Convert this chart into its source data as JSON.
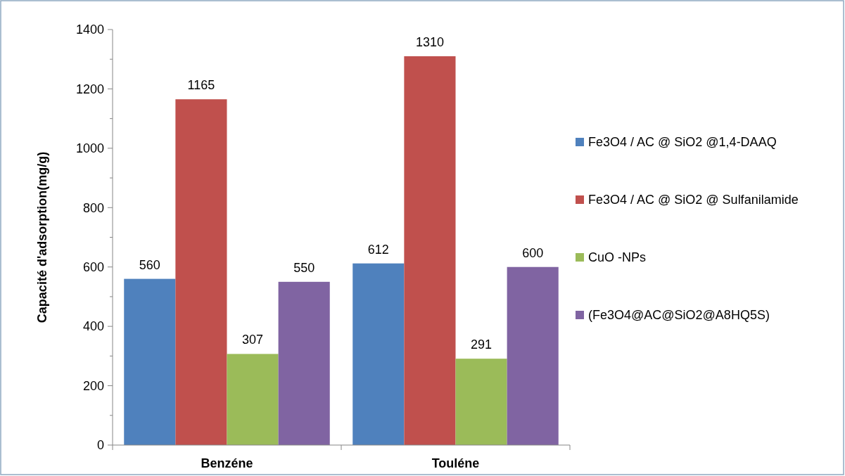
{
  "chart_data": {
    "type": "bar",
    "ylabel": "Capacité d'adsorption(mg/g)",
    "categories": [
      "Benzéne",
      "Touléne"
    ],
    "series": [
      {
        "name": "Fe3O4 / AC @ SiO2 @1,4-DAAQ",
        "color": "#4f81bd",
        "values": [
          560,
          612
        ]
      },
      {
        "name": "Fe3O4 / AC @ SiO2 @ Sulfanilamide",
        "color": "#c0504d",
        "values": [
          1165,
          1310
        ]
      },
      {
        "name": "CuO -NPs",
        "color": "#9bbb59",
        "values": [
          307,
          291
        ]
      },
      {
        "name": "(Fe3O4@AC@SiO2@A8HQ5S)",
        "color": "#8064a2",
        "values": [
          550,
          600
        ]
      }
    ],
    "ylim": [
      0,
      1400
    ],
    "yticks": [
      0,
      {
        "value": 100,
        "label": null
      },
      200,
      {
        "value": 300,
        "label": null
      },
      400,
      {
        "value": 500,
        "label": null
      },
      600,
      {
        "value": 700,
        "label": null
      },
      800,
      {
        "value": 900,
        "label": null
      },
      1000,
      {
        "value": 1100,
        "label": null
      },
      1200,
      {
        "value": 1300,
        "label": null
      },
      1400
    ],
    "data_labels": true,
    "legend": "right",
    "grid": false
  }
}
